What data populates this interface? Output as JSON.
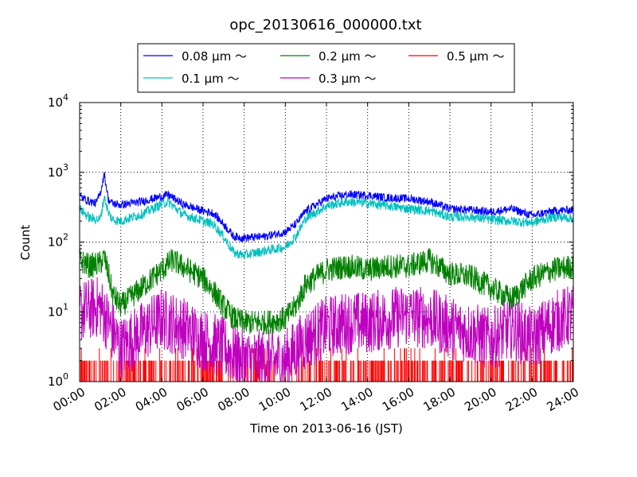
{
  "chart_data": {
    "type": "line",
    "title": "opc_20130616_000000.txt",
    "xlabel": "Time on 2013-06-16 (JST)",
    "ylabel": "Count",
    "x_ticks": [
      "00:00",
      "02:00",
      "04:00",
      "06:00",
      "08:00",
      "10:00",
      "12:00",
      "14:00",
      "16:00",
      "18:00",
      "20:00",
      "22:00",
      "24:00"
    ],
    "xlim_hours": [
      0,
      24
    ],
    "y_scale": "log",
    "ylim": [
      1,
      10000
    ],
    "y_ticks": [
      {
        "base": "10",
        "exp": "0"
      },
      {
        "base": "10",
        "exp": "1"
      },
      {
        "base": "10",
        "exp": "2"
      },
      {
        "base": "10",
        "exp": "3"
      },
      {
        "base": "10",
        "exp": "4"
      }
    ],
    "grid": true,
    "legend_position": "top-center, above plot",
    "series": [
      {
        "name": "0.08 μm ～",
        "color": "#0000ff",
        "noise": 0.06,
        "x": [
          0,
          0.5,
          0.8,
          1,
          1.2,
          1.4,
          1.6,
          2,
          3,
          4,
          4.3,
          5,
          6,
          6.5,
          7,
          7.5,
          8,
          9,
          10,
          10.5,
          11,
          12,
          13,
          14,
          15,
          16,
          17,
          18,
          19,
          20,
          21,
          22,
          23,
          24
        ],
        "y": [
          450,
          380,
          360,
          500,
          950,
          400,
          360,
          340,
          380,
          450,
          480,
          350,
          280,
          260,
          180,
          120,
          115,
          120,
          140,
          180,
          280,
          420,
          480,
          470,
          430,
          420,
          380,
          300,
          290,
          270,
          300,
          240,
          280,
          290
        ]
      },
      {
        "name": "0.1 μm ～",
        "color": "#00bfbf",
        "noise": 0.07,
        "x": [
          0,
          0.5,
          1,
          1.2,
          1.4,
          1.6,
          2,
          3,
          4,
          4.3,
          5,
          6,
          6.5,
          7,
          7.5,
          8,
          9,
          10,
          10.5,
          11,
          12,
          13,
          14,
          15,
          16,
          17,
          18,
          19,
          20,
          21,
          22,
          23,
          24
        ],
        "y": [
          300,
          220,
          210,
          450,
          260,
          210,
          200,
          250,
          350,
          380,
          250,
          200,
          180,
          120,
          70,
          65,
          75,
          85,
          120,
          220,
          330,
          380,
          360,
          330,
          300,
          280,
          230,
          230,
          210,
          200,
          190,
          230,
          220
        ]
      },
      {
        "name": "0.2 μm ～",
        "color": "#008000",
        "noise": 0.18,
        "x": [
          0,
          0.5,
          1,
          1.2,
          1.4,
          1.6,
          2,
          3,
          4,
          4.5,
          5,
          6,
          6.5,
          7,
          7.5,
          8,
          9,
          10,
          10.5,
          11,
          12,
          13,
          14,
          15,
          16,
          17,
          18,
          19,
          20,
          21,
          22,
          23,
          24
        ],
        "y": [
          55,
          45,
          50,
          60,
          35,
          18,
          12,
          22,
          40,
          55,
          45,
          30,
          20,
          12,
          8,
          7,
          7,
          8,
          12,
          25,
          40,
          45,
          40,
          45,
          45,
          55,
          35,
          32,
          22,
          15,
          30,
          40,
          45
        ]
      },
      {
        "name": "0.3 μm ～",
        "color": "#bf00bf",
        "noise": 0.35,
        "x": [
          0,
          1,
          1.5,
          2,
          3,
          4,
          5,
          6,
          7,
          8,
          9,
          10,
          11,
          12,
          13,
          14,
          15,
          16,
          17,
          18,
          19,
          20,
          21,
          22,
          23,
          24
        ],
        "y": [
          10,
          12,
          6,
          3,
          5,
          8,
          6,
          4,
          3,
          2,
          2,
          2,
          4,
          6,
          7,
          7,
          8,
          9,
          8,
          6,
          5,
          4,
          6,
          4,
          7,
          9
        ]
      },
      {
        "name": "0.5 μm ～",
        "color": "#ff0000",
        "noise": 0,
        "x": [
          0,
          24
        ],
        "y": [
          1,
          1
        ]
      }
    ]
  }
}
